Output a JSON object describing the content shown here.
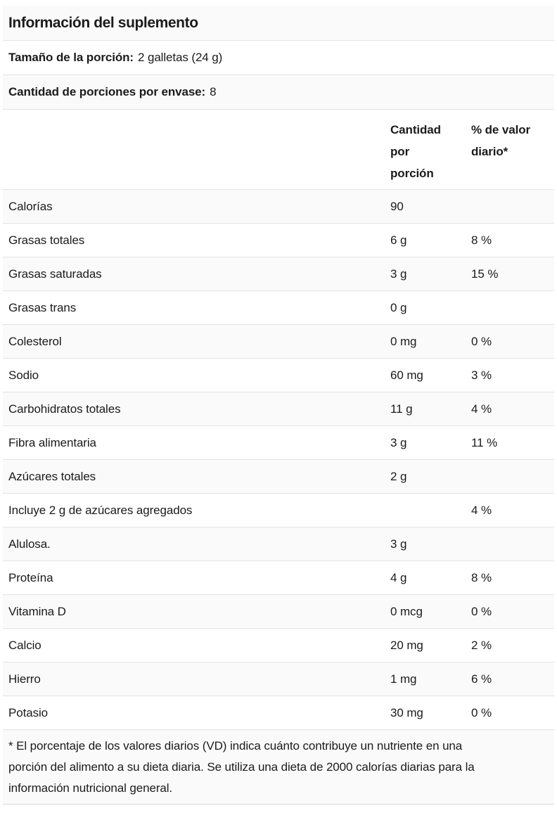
{
  "title": "Información del suplemento",
  "serving_size": {
    "label": "Tamaño de la porción:",
    "value": "2 galletas (24 g)"
  },
  "servings_per_container": {
    "label": "Cantidad de porciones por envase:",
    "value": "8"
  },
  "columns": {
    "amount": "Cantidad por porción",
    "daily_value": "% de valor diario*"
  },
  "nutrients": [
    {
      "name": "Calorías",
      "amount": "90",
      "dv": ""
    },
    {
      "name": "Grasas totales",
      "amount": "6 g",
      "dv": "8 %"
    },
    {
      "name": "Grasas saturadas",
      "amount": "3 g",
      "dv": "15 %"
    },
    {
      "name": "Grasas trans",
      "amount": "0 g",
      "dv": ""
    },
    {
      "name": "Colesterol",
      "amount": "0 mg",
      "dv": "0 %"
    },
    {
      "name": "Sodio",
      "amount": "60 mg",
      "dv": "3 %"
    },
    {
      "name": "Carbohidratos totales",
      "amount": "11 g",
      "dv": "4 %"
    },
    {
      "name": "Fibra alimentaria",
      "amount": "3 g",
      "dv": "11 %"
    },
    {
      "name": "Azúcares totales",
      "amount": "2 g",
      "dv": ""
    },
    {
      "name": "Incluye 2 g de azúcares agregados",
      "amount": "",
      "dv": "4 %"
    },
    {
      "name": "Alulosa.",
      "amount": "3 g",
      "dv": ""
    },
    {
      "name": "Proteína",
      "amount": "4 g",
      "dv": "8 %"
    },
    {
      "name": "Vitamina D",
      "amount": "0 mcg",
      "dv": "0 %"
    },
    {
      "name": "Calcio",
      "amount": "20 mg",
      "dv": "2 %"
    },
    {
      "name": "Hierro",
      "amount": "1 mg",
      "dv": "6 %"
    },
    {
      "name": "Potasio",
      "amount": "30 mg",
      "dv": "0 %"
    }
  ],
  "footnote": "* El porcentaje de los valores diarios (VD) indica cuánto contribuye un nutriente en una porción del alimento a su dieta diaria. Se utiliza una dieta de 2000 calorías diarias para la información nutricional general.",
  "colors": {
    "text": "#1b1b1b",
    "row_shade": "#fafafa",
    "divider": "#e3e3e3",
    "background": "#ffffff"
  }
}
